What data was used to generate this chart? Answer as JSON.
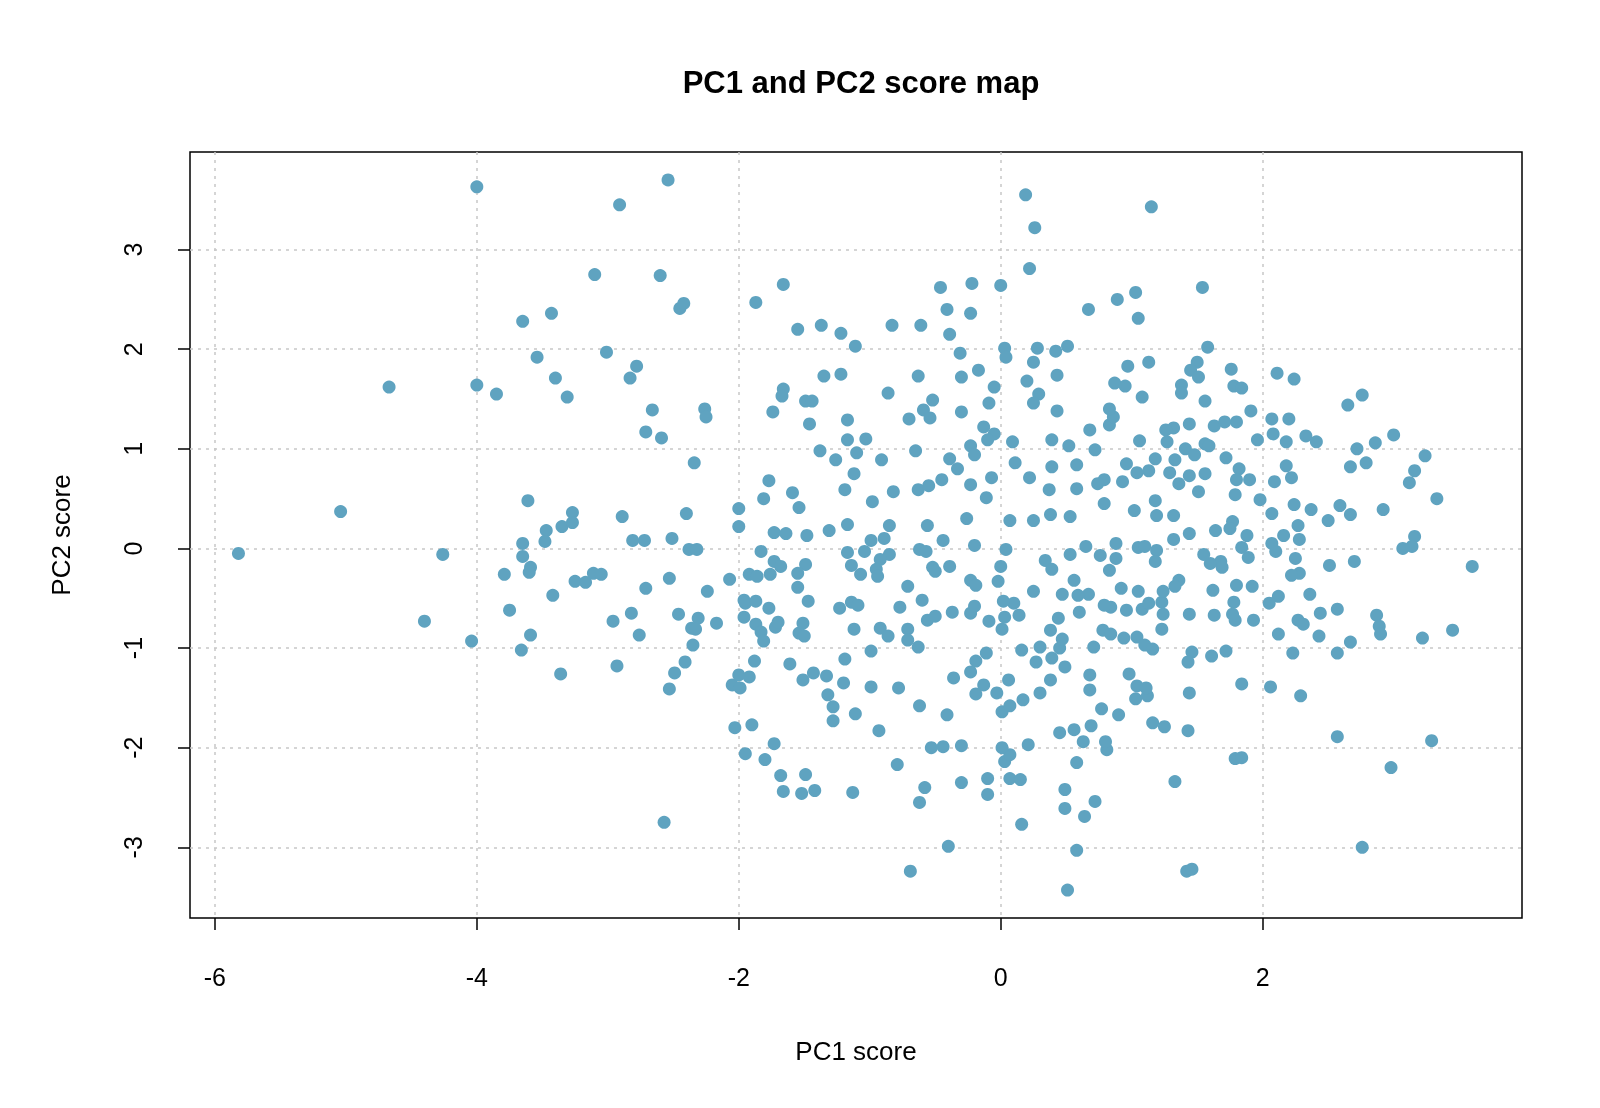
{
  "chart_data": {
    "type": "scatter",
    "title": "PC1 and PC2 score map",
    "xlabel": "PC1 score",
    "ylabel": "PC2 score",
    "x": [
      -4.0,
      -2.91,
      -3.1,
      -3.65,
      -3.43,
      -3.54,
      -3.01,
      -2.78,
      -2.83,
      -4.67,
      -4.0,
      -3.85,
      -3.4,
      -3.31,
      -5.04,
      -3.61,
      -3.27,
      -3.47,
      -3.35,
      -2.89,
      -3.27,
      -5.82,
      -4.26,
      -4.4,
      -4.04,
      -3.65,
      -3.65,
      -3.59,
      -3.6,
      -3.79,
      -3.75,
      -3.42,
      -3.59,
      -3.66,
      -3.36,
      -3.25,
      -3.17,
      -3.11,
      -3.05,
      -2.96,
      -2.82,
      -2.93,
      -3.48,
      -2.81,
      -2.54,
      -2.6,
      -2.45,
      -2.42,
      -1.87,
      -1.66,
      -1.55,
      -1.37,
      -1.22,
      -1.11,
      -0.83,
      -0.61,
      -0.46,
      -0.41,
      -0.39,
      -0.22,
      -0.23,
      0.0,
      0.19,
      0.26,
      0.22,
      -0.31,
      0.03,
      0.04,
      0.28,
      0.42,
      0.51,
      0.25,
      0.2,
      0.43,
      0.29,
      0.25,
      0.43,
      -0.17,
      -0.3,
      -0.05,
      -0.09,
      -0.3,
      -0.13,
      -0.05,
      -0.63,
      -0.86,
      -0.52,
      -0.59,
      -0.7,
      -0.54,
      -2.66,
      -2.71,
      -2.59,
      -2.26,
      -2.25,
      -2.34,
      -2.4,
      -1.66,
      -1.67,
      -1.74,
      -1.35,
      -1.22,
      -1.49,
      -1.44,
      -1.46,
      -1.17,
      -1.17,
      -1.03,
      -1.38,
      -1.26,
      -1.1,
      -0.91,
      -0.65,
      -0.39,
      -0.23,
      -0.2,
      -0.1,
      0.09,
      0.39,
      0.52,
      0.58,
      0.39,
      0.11,
      0.22,
      -0.07,
      -0.33,
      -0.45,
      -1.19,
      -1.12,
      -1.77,
      -1.59,
      -1.81,
      -2.0,
      -2.0,
      -0.98,
      -0.82,
      -0.63,
      -0.55,
      -0.23,
      -0.11,
      -0.26,
      0.37,
      0.38,
      0.53,
      0.07,
      0.25,
      -1.54,
      -1.31,
      -1.17,
      -0.56,
      -0.85,
      1.15,
      1.54,
      0.67,
      0.89,
      1.03,
      1.05,
      1.58,
      0.97,
      1.13,
      0.87,
      0.95,
      1.08,
      1.5,
      1.45,
      1.51,
      1.38,
      1.38,
      1.56,
      1.76,
      1.78,
      1.84,
      2.11,
      2.24,
      1.91,
      2.07,
      2.2,
      2.08,
      1.96,
      2.18,
      2.33,
      2.41,
      2.65,
      2.76,
      3.0,
      2.86,
      2.72,
      2.79,
      2.67,
      3.24,
      3.16,
      3.12,
      3.33,
      2.92,
      2.59,
      2.67,
      2.5,
      2.37,
      2.24,
      2.27,
      2.07,
      2.09,
      2.22,
      2.18,
      1.98,
      1.9,
      1.82,
      1.8,
      1.79,
      1.72,
      1.63,
      1.8,
      1.71,
      1.56,
      1.59,
      1.44,
      1.32,
      1.26,
      1.06,
      1.27,
      1.41,
      1.48,
      1.33,
      1.18,
      0.96,
      1.13,
      1.04,
      1.29,
      1.44,
      1.56,
      1.36,
      1.51,
      0.93,
      0.79,
      0.74,
      0.58,
      0.72,
      0.68,
      0.83,
      0.86,
      0.83,
      0.79,
      1.02,
      1.18,
      1.19,
      1.32,
      1.44,
      1.64,
      1.77,
      1.75,
      1.88,
      3.16,
      3.6,
      3.45,
      3.22,
      3.14,
      3.07,
      2.7,
      2.51,
      2.87,
      2.89,
      2.9,
      2.67,
      2.57,
      2.57,
      2.43,
      2.44,
      2.36,
      2.27,
      2.31,
      2.23,
      2.12,
      2.05,
      2.12,
      2.28,
      2.22,
      2.25,
      2.28,
      2.1,
      2.07,
      2.16,
      1.92,
      1.93,
      1.8,
      1.78,
      1.77,
      1.79,
      1.63,
      1.62,
      1.89,
      1.84,
      1.68,
      1.69,
      1.6,
      1.55,
      1.44,
      1.46,
      1.43,
      1.61,
      1.72,
      1.84,
      2.06,
      2.29,
      1.44,
      1.43,
      2.57,
      3.29,
      2.98,
      2.76,
      1.79,
      1.84,
      1.33,
      1.42,
      1.46,
      0.58,
      0.72,
      0.64,
      0.58,
      0.51,
      0.81,
      0.8,
      0.63,
      0.69,
      0.9,
      0.77,
      1.16,
      1.25,
      0.68,
      0.68,
      0.98,
      1.03,
      1.12,
      1.04,
      1.11,
      0.78,
      0.84,
      0.94,
      1.04,
      1.1,
      1.16,
      0.71,
      1.23,
      1.24,
      1.23,
      1.24,
      1.36,
      1.33,
      1.08,
      1.13,
      0.96,
      0.84,
      0.79,
      0.92,
      1.05,
      0.67,
      0.59,
      0.56,
      0.65,
      0.76,
      0.88,
      0.88,
      0.83,
      1.05,
      1.1,
      1.19,
      1.18,
      1.32,
      0.6,
      -2.57,
      -0.69,
      -0.4,
      0.16,
      0.49,
      0.49,
      -0.1,
      -0.1,
      -0.3,
      -0.58,
      -0.62,
      0.07,
      0.15,
      0.03,
      0.07,
      0.01,
      0.21,
      -0.53,
      -0.44,
      -0.3,
      -0.79,
      -1.13,
      -1.42,
      -1.52,
      -1.66,
      -1.49,
      -1.68,
      -1.8,
      -1.95,
      -1.73,
      -2.03,
      -1.9,
      -0.93,
      -1.28,
      -1.11,
      -0.62,
      -0.41,
      0.45,
      0.56,
      -2.53,
      -2.49,
      -2.41,
      -2.35,
      -2.05,
      -1.99,
      -2.0,
      -1.92,
      -1.88,
      -1.61,
      -1.51,
      -1.43,
      -1.33,
      -1.19,
      -1.2,
      -1.32,
      -1.28,
      -0.99,
      -0.99,
      -0.78,
      -0.36,
      -0.23,
      -0.19,
      -0.11,
      -0.13,
      -0.19,
      -0.03,
      0.06,
      0.01,
      0.07,
      0.17,
      0.3,
      0.38,
      0.27,
      0.39,
      0.49,
      0.16,
      0.3,
      0.45,
      0.47,
      0.47,
      0.38,
      0.44,
      0.53,
      0.34,
      0.39,
      0.25,
      0.1,
      0.14,
      0.03,
      0.01,
      -0.09,
      0.02,
      -0.02,
      0.0,
      0.04,
      -0.2,
      -0.23,
      -0.19,
      -0.23,
      -0.2,
      -0.37,
      -0.39,
      -0.44,
      -0.52,
      -0.5,
      -0.62,
      -0.57,
      -0.71,
      -0.6,
      -0.56,
      -0.5,
      -0.71,
      -0.71,
      -0.63,
      -0.77,
      -0.92,
      -0.86,
      -1.12,
      -1.14,
      -1.09,
      -1.23,
      -0.85,
      -0.92,
      -0.95,
      -0.94,
      -0.89,
      -0.99,
      -1.04,
      -1.17,
      -1.14,
      -1.07,
      -1.49,
      -1.55,
      -1.55,
      -1.47,
      -1.51,
      -1.54,
      -1.5,
      -1.72,
      -1.7,
      -1.77,
      -1.87,
      -1.83,
      -1.81,
      -1.96,
      -1.96,
      -1.95,
      -1.87,
      -1.92,
      -1.86,
      -1.76,
      -1.73,
      -1.68,
      -1.83,
      -2.07,
      -2.17,
      -2.31,
      -2.36,
      -2.33,
      -2.46,
      -2.24,
      -2.53,
      -2.71,
      -2.76,
      -2.51,
      -2.38,
      -2.32,
      -2.72,
      -1.73,
      -1.64,
      -1.48
    ],
    "values": [
      3.63,
      3.45,
      2.75,
      2.28,
      2.36,
      1.92,
      1.97,
      1.83,
      1.71,
      1.62,
      1.64,
      1.55,
      1.71,
      1.52,
      0.37,
      0.48,
      0.36,
      0.18,
      0.22,
      0.32,
      0.26,
      -0.05,
      -0.06,
      -0.73,
      -0.93,
      0.05,
      -0.08,
      -0.19,
      -0.24,
      -0.26,
      -0.62,
      -0.47,
      -0.87,
      -1.02,
      -1.26,
      -0.33,
      -0.34,
      -0.25,
      -0.26,
      -0.73,
      -0.65,
      -1.18,
      0.07,
      0.08,
      3.7,
      2.74,
      2.41,
      2.46,
      2.47,
      2.65,
      2.2,
      2.24,
      2.16,
      2.03,
      2.24,
      2.24,
      2.62,
      2.4,
      2.15,
      2.66,
      2.36,
      2.64,
      3.55,
      3.22,
      2.81,
      1.96,
      2.01,
      1.92,
      2.01,
      1.98,
      2.03,
      1.87,
      1.68,
      1.74,
      1.55,
      1.46,
      1.38,
      1.79,
      1.72,
      1.62,
      1.46,
      1.37,
      1.22,
      1.15,
      1.73,
      1.56,
      1.49,
      1.39,
      1.3,
      1.31,
      1.39,
      1.17,
      1.11,
      1.4,
      1.32,
      0.86,
      0.35,
      1.6,
      1.53,
      1.37,
      1.73,
      1.75,
      1.48,
      1.48,
      1.25,
      1.29,
      1.09,
      1.1,
      0.98,
      0.89,
      0.96,
      0.89,
      0.98,
      0.9,
      1.03,
      0.94,
      1.09,
      1.07,
      1.09,
      1.03,
      0.84,
      0.82,
      0.86,
      0.71,
      0.71,
      0.8,
      0.69,
      0.59,
      0.75,
      0.68,
      0.56,
      0.5,
      0.4,
      0.22,
      0.47,
      0.57,
      0.59,
      0.63,
      0.64,
      0.51,
      0.3,
      0.59,
      0.34,
      0.32,
      0.28,
      0.28,
      0.41,
      0.18,
      0.24,
      0.23,
      0.23,
      3.43,
      2.62,
      2.4,
      2.5,
      2.57,
      2.31,
      2.02,
      1.83,
      1.87,
      1.66,
      1.63,
      1.52,
      1.87,
      1.79,
      1.72,
      1.64,
      1.56,
      1.48,
      1.8,
      1.63,
      1.61,
      1.76,
      1.7,
      1.38,
      1.3,
      1.3,
      1.15,
      1.09,
      1.07,
      1.13,
      1.07,
      1.44,
      1.54,
      1.14,
      1.06,
      1.0,
      0.86,
      0.82,
      0.93,
      0.78,
      0.66,
      0.5,
      0.39,
      0.43,
      0.34,
      0.28,
      0.39,
      0.44,
      0.23,
      0.35,
      0.67,
      0.71,
      0.83,
      0.49,
      0.69,
      0.8,
      0.69,
      0.54,
      0.91,
      1.23,
      1.27,
      1.27,
      1.05,
      1.03,
      1.25,
      1.21,
      1.19,
      1.08,
      1.07,
      1.0,
      0.94,
      0.89,
      0.9,
      0.85,
      0.78,
      0.76,
      0.76,
      0.73,
      0.75,
      0.65,
      0.57,
      0.67,
      0.69,
      0.65,
      0.6,
      0.99,
      1.19,
      1.24,
      1.32,
      1.4,
      0.45,
      0.38,
      0.48,
      0.33,
      0.33,
      0.15,
      0.18,
      0.27,
      0.2,
      0.13,
      0.12,
      -0.18,
      -0.82,
      -0.9,
      0.02,
      0.0,
      -0.13,
      -0.17,
      -0.67,
      -0.78,
      -0.86,
      -0.94,
      -0.61,
      -1.05,
      -0.88,
      -0.65,
      -0.46,
      -0.72,
      -0.76,
      -1.05,
      -0.48,
      -0.55,
      -0.86,
      -0.25,
      -0.27,
      -0.1,
      0.09,
      -0.03,
      0.05,
      0.13,
      -0.38,
      -0.72,
      -0.37,
      -0.54,
      -0.66,
      -0.72,
      -0.67,
      -0.42,
      -0.09,
      0.01,
      -0.13,
      -0.19,
      -0.15,
      -0.06,
      -0.66,
      -1.04,
      -1.14,
      -1.08,
      -1.03,
      -1.36,
      -1.39,
      -1.48,
      -1.45,
      -1.83,
      -1.89,
      -1.93,
      -2.2,
      -3.0,
      -2.11,
      -2.1,
      -2.34,
      -3.24,
      -3.22,
      -3.03,
      -2.54,
      -2.69,
      -2.15,
      -3.43,
      -2.02,
      -1.94,
      -1.94,
      -1.78,
      -1.67,
      -1.61,
      -1.75,
      -1.79,
      -1.27,
      -1.42,
      -1.26,
      -1.51,
      -1.48,
      -1.38,
      -1.4,
      -0.82,
      -0.86,
      -0.9,
      -0.89,
      -0.97,
      -1.01,
      -0.99,
      -0.81,
      -0.66,
      -0.54,
      -0.43,
      -0.32,
      -0.38,
      -0.61,
      -0.55,
      -0.62,
      -0.59,
      -0.57,
      -0.4,
      -0.43,
      -0.46,
      -0.47,
      -0.32,
      0.02,
      -0.07,
      0.05,
      -0.1,
      -0.22,
      0.01,
      0.02,
      -0.02,
      -0.13,
      0.09,
      -0.64,
      -2.75,
      -3.24,
      -2.99,
      -2.77,
      -2.61,
      -2.42,
      -2.47,
      -2.31,
      -2.35,
      -2.4,
      -2.55,
      -2.31,
      -2.32,
      -2.14,
      -2.07,
      -2.0,
      -1.97,
      -2.0,
      -1.99,
      -1.98,
      -2.17,
      -2.45,
      -2.43,
      -2.46,
      -2.44,
      -2.27,
      -2.28,
      -2.12,
      -2.06,
      -1.96,
      -1.8,
      -1.77,
      -1.83,
      -1.73,
      -1.66,
      -1.58,
      -1.67,
      -1.85,
      -1.82,
      -1.41,
      -1.25,
      -1.14,
      -0.97,
      -1.37,
      -1.4,
      -1.27,
      -1.29,
      -1.13,
      -1.16,
      -1.32,
      -1.25,
      -1.28,
      -1.11,
      -1.35,
      -1.47,
      -1.59,
      -1.03,
      -1.39,
      -1.4,
      -1.3,
      -1.24,
      -1.13,
      -1.05,
      -1.37,
      -1.46,
      -1.45,
      -1.32,
      -1.64,
      -1.58,
      -1.52,
      -1.45,
      -1.32,
      -1.14,
      -1.1,
      -1.19,
      -1.02,
      -0.99,
      -1.0,
      -0.91,
      -0.46,
      -0.82,
      -0.7,
      -0.06,
      -0.12,
      -0.21,
      -0.43,
      -0.55,
      -0.67,
      -0.69,
      -0.81,
      -0.73,
      -0.53,
      -0.33,
      -0.18,
      -0.01,
      0.03,
      -0.32,
      -0.37,
      -0.65,
      -0.58,
      -0.64,
      -0.18,
      0.08,
      -0.19,
      -0.23,
      -0.01,
      -0.03,
      -0.38,
      -0.52,
      -0.72,
      -0.68,
      -0.81,
      -0.92,
      -0.99,
      -0.59,
      -0.8,
      -0.88,
      -0.81,
      -0.54,
      -0.57,
      -0.6,
      -0.06,
      -0.11,
      -0.21,
      -0.28,
      0.1,
      0.08,
      -0.03,
      -0.04,
      -0.17,
      -0.26,
      -0.16,
      -0.25,
      -0.39,
      -0.53,
      -0.75,
      -0.85,
      -0.88,
      -0.79,
      -0.74,
      -0.6,
      -0.76,
      -0.84,
      -0.93,
      -0.69,
      -0.52,
      -0.55,
      -0.53,
      -0.26,
      -0.28,
      -0.26,
      -0.13,
      -0.18,
      -0.03,
      -0.31,
      -0.75,
      -0.7,
      -0.8,
      -0.81,
      -0.66,
      -0.43,
      -0.3,
      -0.4,
      -0.87,
      0.1,
      -0.01,
      -0.01,
      0.08,
      0.16,
      0.15,
      0.13
    ],
    "color": "#5fa3c0",
    "marker": "circle",
    "xlim": [
      -6.19,
      3.98
    ],
    "ylim": [
      -3.71,
      3.98
    ],
    "xticks": [
      -6,
      -4,
      -2,
      0,
      2
    ],
    "yticks": [
      -3,
      -2,
      -1,
      0,
      1,
      2,
      3
    ],
    "grid": true
  }
}
